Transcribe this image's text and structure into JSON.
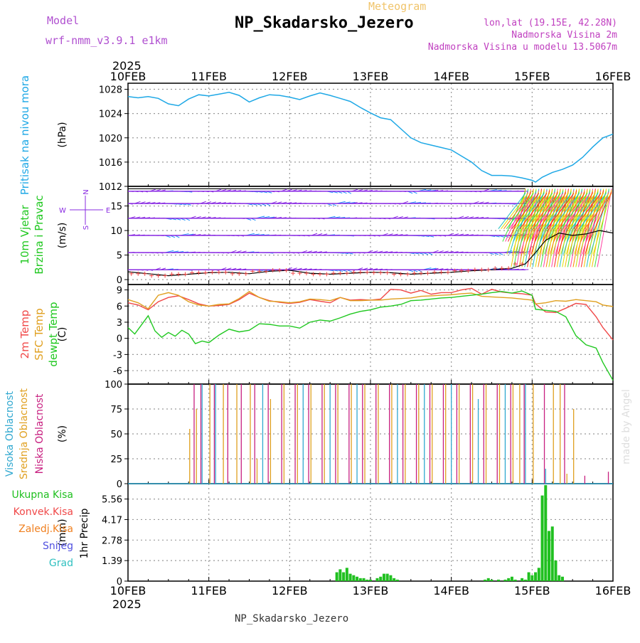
{
  "header": {
    "title": "NP_Skadarsko_Jezero",
    "meteogram": "Meteogram",
    "model_label": "Model",
    "model_value": "wrf-nmm_v3.9.1 e1km",
    "location_line1": "lon,lat (19.15E, 42.28N)",
    "location_line2": "Nadmorska Visina 2m",
    "location_line3": "Nadmorska Visina u modelu 13.5067m",
    "year_top": "2025",
    "year_bottom": "2025",
    "footer": "NP_Skadarsko_Jezero",
    "credit": "made by Angel"
  },
  "time_axis": {
    "start": "2025-02-10T00",
    "end": "2025-02-16T00",
    "tick_labels": [
      "10FEB",
      "11FEB",
      "12FEB",
      "13FEB",
      "14FEB",
      "15FEB",
      "16FEB"
    ]
  },
  "colors": {
    "pressure": "#1ea8e6",
    "t2m": "#f04848",
    "sfc": "#e0a020",
    "dew": "#20c820",
    "high_cloud": "#30a8d0",
    "mid_cloud": "#e0a020",
    "low_cloud": "#c82080",
    "precip": "#20c020",
    "wind_purple": "#8a2be2",
    "wind_blue": "#1e90ff"
  },
  "chart_data": [
    {
      "type": "line",
      "panel": "pressure",
      "ylabel_left": "Pritisak na nivou mora",
      "units": "(hPa)",
      "ylim": [
        1012,
        1029
      ],
      "yticks": [
        1012,
        1016,
        1020,
        1024,
        1028
      ],
      "series": [
        {
          "x": [
            0,
            3,
            6,
            9,
            12,
            15,
            18,
            21,
            24,
            27,
            30,
            33,
            36,
            39,
            42,
            45,
            48,
            51,
            54,
            57,
            60,
            63,
            66,
            69,
            72,
            75,
            78,
            81,
            84,
            87,
            90,
            93,
            96,
            99,
            102,
            105,
            108,
            111,
            114,
            117,
            120,
            121,
            123,
            126,
            129,
            132,
            135,
            138,
            141,
            144
          ],
          "y": [
            1026.8,
            1026.6,
            1026.8,
            1026.5,
            1025.6,
            1025.3,
            1026.4,
            1027.1,
            1026.9,
            1027.2,
            1027.5,
            1027.0,
            1025.9,
            1026.6,
            1027.1,
            1027.0,
            1026.7,
            1026.3,
            1026.9,
            1027.4,
            1027.0,
            1026.5,
            1026.0,
            1025.0,
            1024.1,
            1023.3,
            1023.0,
            1021.5,
            1020.0,
            1019.2,
            1018.8,
            1018.4,
            1018.0,
            1017.0,
            1016.0,
            1014.6,
            1013.8,
            1013.8,
            1013.7,
            1013.4,
            1013.0,
            1012.7,
            1013.5,
            1014.3,
            1014.8,
            1015.5,
            1016.8,
            1018.5,
            1020.0,
            1020.6
          ]
        }
      ]
    },
    {
      "type": "barbs",
      "panel": "wind",
      "ylabel_left": "10m Vjetar",
      "ylabel_left2": "Brzina i Pravac",
      "units": "(m/s)",
      "compass": [
        "W",
        "E",
        "N",
        "S"
      ],
      "ylim": [
        -1,
        19
      ],
      "yticks": [
        0,
        5,
        10,
        15
      ],
      "speed_series": {
        "x": [
          0,
          6,
          12,
          18,
          24,
          30,
          36,
          42,
          48,
          54,
          60,
          66,
          72,
          78,
          84,
          90,
          96,
          102,
          108,
          114,
          118,
          121,
          124,
          128,
          132,
          136,
          140,
          144
        ],
        "y": [
          1.6,
          1.2,
          0.8,
          1.1,
          1.4,
          1.5,
          1.2,
          1.7,
          1.9,
          1.3,
          1.1,
          1.3,
          1.5,
          1.4,
          1.1,
          1.3,
          1.5,
          1.8,
          2.0,
          2.3,
          3.2,
          5.5,
          8.0,
          9.5,
          9.0,
          9.3,
          10.0,
          9.5
        ]
      },
      "barb_rows": [
        2,
        5.5,
        9,
        12.5,
        15.5,
        18
      ]
    },
    {
      "type": "line",
      "panel": "temperature",
      "ylabel_left": "2m Temp",
      "ylabel_left2": "SFC Temp",
      "ylabel_left3": "dewpt Temp",
      "units": "(C)",
      "ylim": [
        -8.5,
        10
      ],
      "yticks": [
        -6,
        -3,
        0,
        3,
        6,
        9
      ],
      "series": [
        {
          "name": "2m Temp",
          "x": [
            0,
            3,
            6,
            9,
            12,
            15,
            18,
            21,
            24,
            27,
            30,
            33,
            36,
            39,
            42,
            45,
            48,
            51,
            54,
            57,
            60,
            63,
            66,
            69,
            72,
            75,
            78,
            81,
            84,
            87,
            90,
            93,
            96,
            99,
            102,
            105,
            108,
            111,
            114,
            117,
            120,
            121,
            124,
            127,
            130,
            133,
            136,
            139,
            141,
            144
          ],
          "y": [
            6.6,
            6.2,
            5.3,
            6.8,
            7.6,
            7.9,
            7.2,
            6.4,
            6.0,
            6.1,
            6.3,
            7.2,
            8.4,
            7.6,
            7.0,
            6.7,
            6.5,
            6.7,
            7.2,
            6.9,
            6.6,
            7.6,
            7.1,
            7.2,
            7.1,
            7.3,
            9.1,
            9.0,
            8.4,
            8.9,
            8.2,
            8.5,
            8.5,
            9.0,
            9.3,
            8.2,
            9.1,
            8.6,
            8.4,
            8.3,
            8.0,
            6.4,
            4.9,
            4.8,
            5.6,
            6.5,
            6.3,
            4.0,
            2.0,
            -0.3
          ]
        },
        {
          "name": "SFC Temp",
          "x": [
            0,
            3,
            6,
            9,
            12,
            15,
            18,
            21,
            24,
            27,
            30,
            33,
            36,
            39,
            42,
            45,
            48,
            51,
            54,
            57,
            60,
            63,
            66,
            69,
            72,
            75,
            78,
            81,
            84,
            87,
            90,
            93,
            96,
            99,
            102,
            105,
            108,
            111,
            114,
            117,
            120,
            121,
            124,
            127,
            130,
            133,
            136,
            139,
            141,
            144
          ],
          "y": [
            7.2,
            6.6,
            5.5,
            8.0,
            8.5,
            8.0,
            6.8,
            6.2,
            6.0,
            6.3,
            6.4,
            7.4,
            8.7,
            7.6,
            6.9,
            6.8,
            6.6,
            6.8,
            7.3,
            7.2,
            7.0,
            7.6,
            7.0,
            7.0,
            7.1,
            7.1,
            7.3,
            7.4,
            7.5,
            7.8,
            7.9,
            8.0,
            8.1,
            8.3,
            8.4,
            7.8,
            7.7,
            7.6,
            7.5,
            7.3,
            7.1,
            6.4,
            6.6,
            7.0,
            6.9,
            7.2,
            7.0,
            6.8,
            6.2,
            5.9
          ]
        },
        {
          "name": "dewpt Temp",
          "x": [
            0,
            2,
            4,
            6,
            8,
            10,
            12,
            14,
            16,
            18,
            20,
            22,
            24,
            27,
            30,
            33,
            36,
            39,
            42,
            45,
            48,
            51,
            54,
            57,
            60,
            63,
            66,
            69,
            72,
            75,
            78,
            81,
            84,
            87,
            90,
            93,
            96,
            99,
            102,
            105,
            108,
            111,
            114,
            117,
            120,
            121,
            124,
            127,
            130,
            133,
            136,
            139,
            141,
            144
          ],
          "y": [
            2.0,
            0.8,
            2.5,
            4.2,
            1.4,
            0.2,
            1.1,
            0.4,
            1.5,
            0.8,
            -1.0,
            -0.5,
            -0.8,
            0.6,
            1.7,
            1.2,
            1.5,
            2.7,
            2.6,
            2.3,
            2.3,
            1.9,
            3.0,
            3.4,
            3.2,
            3.8,
            4.5,
            5.0,
            5.3,
            5.8,
            6.0,
            6.3,
            7.0,
            7.1,
            7.3,
            7.5,
            7.6,
            7.8,
            8.0,
            8.2,
            8.5,
            8.7,
            8.4,
            8.8,
            8.0,
            5.4,
            5.2,
            5.0,
            4.0,
            0.5,
            -1.2,
            -1.8,
            -4.5,
            -7.8
          ]
        }
      ]
    },
    {
      "type": "bar",
      "panel": "clouds",
      "ylabel_left": "Visoka Oblacnost",
      "ylabel_left2": "Srednja Oblacnost",
      "ylabel_left3": "Niska Oblacnost",
      "units": "(%)",
      "ylim": [
        0,
        100
      ],
      "yticks": [
        0,
        25,
        50,
        75,
        100
      ],
      "series": [
        {
          "name": "Visoka Oblacnost",
          "x": [
            22,
            26,
            40,
            52,
            60,
            68,
            80,
            88,
            96,
            104,
            112,
            118,
            124
          ],
          "y": [
            100,
            100,
            100,
            100,
            100,
            100,
            100,
            100,
            100,
            85,
            100,
            100,
            15
          ]
        },
        {
          "name": "Srednja Oblacnost",
          "x": [
            18,
            20,
            24,
            28,
            32,
            36,
            38,
            42,
            46,
            50,
            54,
            58,
            62,
            66,
            70,
            74,
            78,
            82,
            86,
            90,
            94,
            98,
            102,
            106,
            110,
            114,
            116,
            120,
            126,
            128,
            130,
            132
          ],
          "y": [
            55,
            75,
            100,
            100,
            100,
            100,
            25,
            85,
            100,
            100,
            100,
            100,
            100,
            100,
            100,
            100,
            100,
            100,
            100,
            100,
            100,
            100,
            100,
            100,
            100,
            100,
            100,
            100,
            100,
            100,
            10,
            75
          ]
        },
        {
          "name": "Niska Oblacnost",
          "x": [
            19,
            21,
            25,
            29,
            33,
            37,
            41,
            45,
            49,
            53,
            57,
            61,
            65,
            69,
            73,
            77,
            81,
            85,
            89,
            93,
            97,
            101,
            105,
            109,
            113,
            117,
            123,
            129,
            135,
            142
          ],
          "y": [
            100,
            100,
            100,
            100,
            100,
            100,
            100,
            100,
            100,
            100,
            100,
            100,
            100,
            100,
            100,
            100,
            100,
            100,
            100,
            100,
            100,
            100,
            100,
            100,
            100,
            100,
            100,
            100,
            8,
            12
          ]
        }
      ]
    },
    {
      "type": "bar",
      "panel": "precip",
      "ylabel_left": "1hr Precip",
      "units": "(mm)",
      "legend": [
        "Ukupna Kisa",
        "Konvek.Kisa",
        "Zaledj.Kisa",
        "Snijeg",
        "Grad"
      ],
      "ylim": [
        0,
        6.6
      ],
      "yticks": [
        0,
        1.39,
        2.78,
        4.17,
        5.56
      ],
      "ytick_labels": [
        "0",
        "1.39",
        "2.78",
        "4.17",
        "5.56"
      ],
      "series": [
        {
          "name": "Ukupna Kisa",
          "x": [
            62,
            63,
            64,
            65,
            66,
            67,
            68,
            69,
            70,
            71,
            72,
            74,
            75,
            76,
            77,
            78,
            79,
            80,
            106,
            107,
            108,
            110,
            112,
            113,
            114,
            115,
            117,
            118,
            119,
            120,
            121,
            122,
            123,
            124,
            125,
            126,
            127,
            128,
            129
          ],
          "y": [
            0.6,
            0.8,
            0.6,
            0.9,
            0.5,
            0.4,
            0.3,
            0.2,
            0.2,
            0.1,
            0.1,
            0.2,
            0.3,
            0.5,
            0.5,
            0.4,
            0.2,
            0.1,
            0.1,
            0.2,
            0.1,
            0.1,
            0.1,
            0.2,
            0.3,
            0.1,
            0.2,
            0.1,
            0.6,
            0.4,
            0.6,
            0.9,
            5.8,
            6.5,
            3.4,
            3.7,
            1.4,
            0.4,
            0.3
          ]
        }
      ]
    }
  ]
}
